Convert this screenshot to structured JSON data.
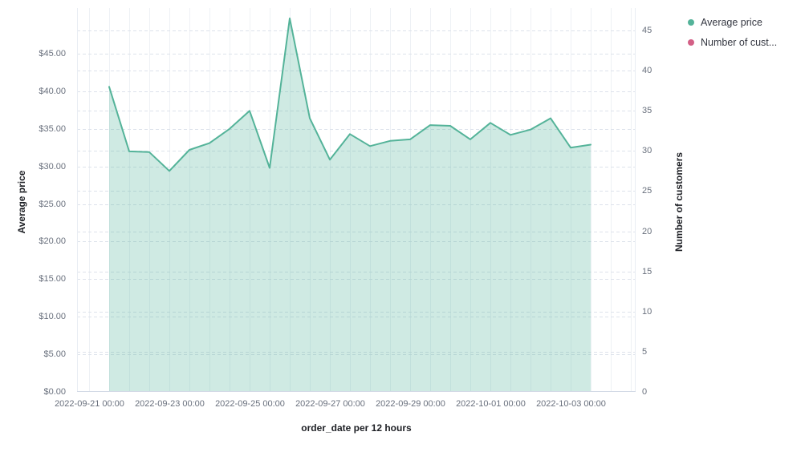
{
  "page": {
    "background": "#ffffff"
  },
  "legend": {
    "position": "top-right",
    "items": [
      {
        "label": "Average price",
        "color": "#54b399"
      },
      {
        "label": "Number of cust...",
        "color": "#d36086"
      }
    ]
  },
  "chart_data": {
    "type": "area",
    "title": "",
    "xlabel": "order_date per 12 hours",
    "grid": true,
    "legend_position": "top-right",
    "x": [
      "2022-09-21 12:00",
      "2022-09-22 00:00",
      "2022-09-22 12:00",
      "2022-09-23 00:00",
      "2022-09-23 12:00",
      "2022-09-24 00:00",
      "2022-09-24 12:00",
      "2022-09-25 00:00",
      "2022-09-25 12:00",
      "2022-09-26 00:00",
      "2022-09-26 12:00",
      "2022-09-27 00:00",
      "2022-09-27 12:00",
      "2022-09-28 00:00",
      "2022-09-28 12:00",
      "2022-09-29 00:00",
      "2022-09-29 12:00",
      "2022-09-30 00:00",
      "2022-09-30 12:00",
      "2022-10-01 00:00",
      "2022-10-01 12:00",
      "2022-10-02 00:00",
      "2022-10-02 12:00",
      "2022-10-03 00:00",
      "2022-10-03 12:00"
    ],
    "series": [
      {
        "name": "Average price",
        "axis": "left",
        "color": "#54b399",
        "fill_opacity": 0.28,
        "values": [
          40.6,
          32.0,
          31.9,
          29.4,
          32.2,
          33.1,
          35.0,
          37.4,
          29.8,
          49.7,
          36.4,
          30.9,
          34.3,
          32.7,
          33.4,
          33.6,
          35.5,
          35.4,
          33.6,
          35.8,
          34.2,
          34.9,
          36.4,
          32.5,
          32.9
        ]
      },
      {
        "name": "Number of customers",
        "axis": "right",
        "color": "#d36086",
        "values": []
      }
    ],
    "x_tick_labels": [
      "2022-09-21 00:00",
      "2022-09-23 00:00",
      "2022-09-25 00:00",
      "2022-09-27 00:00",
      "2022-09-29 00:00",
      "2022-10-01 00:00",
      "2022-10-03 00:00"
    ],
    "left_axis": {
      "title": "Average price",
      "range": [
        0,
        45
      ],
      "tick_values": [
        0,
        5,
        10,
        15,
        20,
        25,
        30,
        35,
        40,
        45
      ],
      "tick_labels": [
        "$0.00",
        "$5.00",
        "$10.00",
        "$15.00",
        "$20.00",
        "$25.00",
        "$30.00",
        "$35.00",
        "$40.00",
        "$45.00"
      ]
    },
    "right_axis": {
      "title": "Number of customers",
      "range": [
        0,
        45
      ],
      "tick_values": [
        0,
        5,
        10,
        15,
        20,
        25,
        30,
        35,
        40,
        45
      ],
      "tick_labels": [
        "0",
        "5",
        "10",
        "15",
        "20",
        "25",
        "30",
        "35",
        "40",
        "45"
      ]
    }
  },
  "colors": {
    "vertical_grid": "#eef1f5",
    "horizontal_grid": "#dde2eb",
    "axis_line": "#d3dae6",
    "tick_text": "#69707d",
    "title_text": "#1d1f24"
  }
}
